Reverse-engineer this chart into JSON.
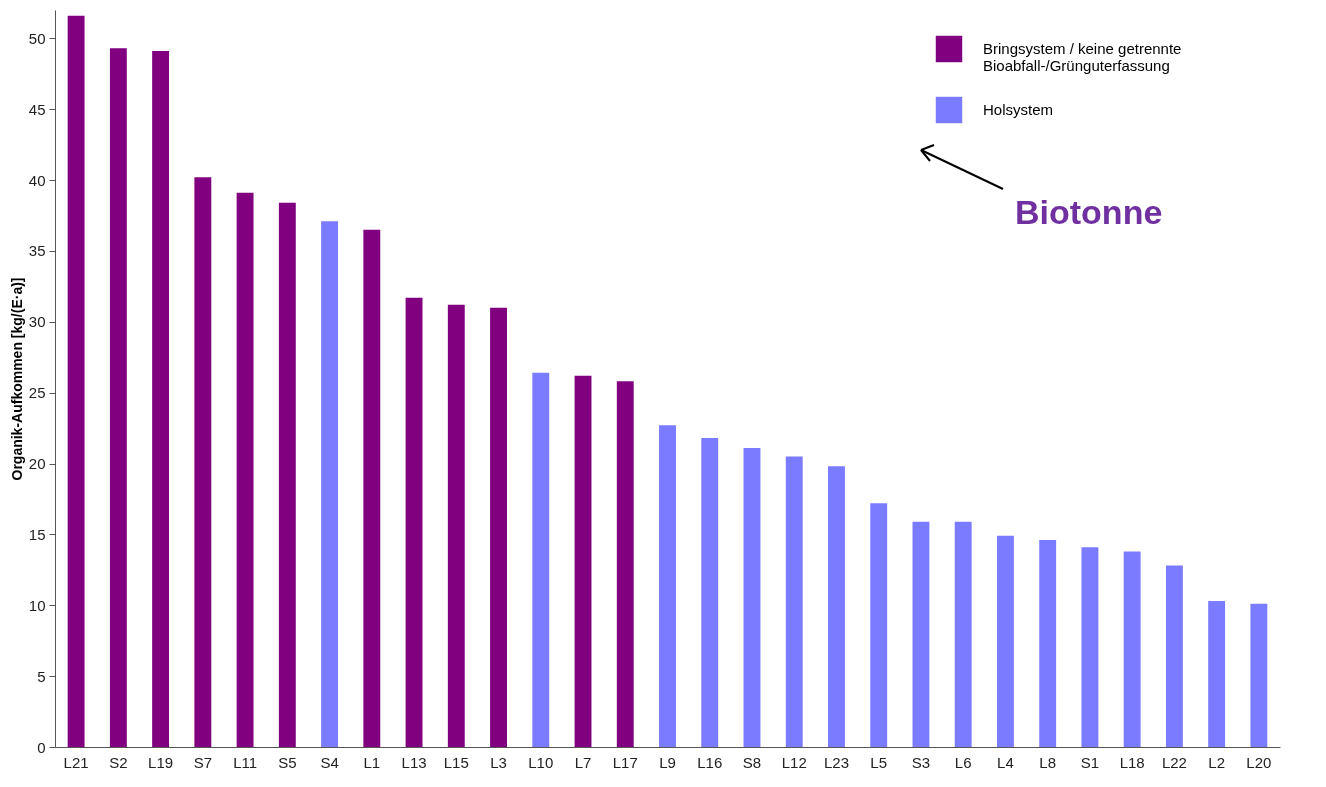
{
  "chart_data": {
    "type": "bar",
    "ylabel": "Organik-Aufkommen [kg/(E·a)]",
    "categories": [
      "L21",
      "S2",
      "L19",
      "S7",
      "L11",
      "S5",
      "S4",
      "L1",
      "L13",
      "L15",
      "L3",
      "L10",
      "L7",
      "L17",
      "L9",
      "L16",
      "S8",
      "L12",
      "L23",
      "L5",
      "S3",
      "L6",
      "L4",
      "L8",
      "S1",
      "L18",
      "L22",
      "L2",
      "L20"
    ],
    "series": [
      {
        "name": "Bringsystem / keine getrennte Bioabfall-/Grünguterfassung",
        "color": "#800080",
        "values": [
          51.6,
          49.3,
          49.1,
          40.2,
          39.1,
          38.4,
          null,
          36.5,
          31.7,
          31.2,
          31.0,
          null,
          26.2,
          25.8,
          null,
          null,
          null,
          null,
          null,
          null,
          null,
          null,
          null,
          null,
          null,
          null,
          null,
          null,
          null
        ]
      },
      {
        "name": "Holsystem",
        "color": "#7b7bff",
        "values": [
          null,
          null,
          null,
          null,
          null,
          null,
          37.1,
          null,
          null,
          null,
          null,
          26.4,
          null,
          null,
          22.7,
          21.8,
          21.1,
          20.5,
          19.8,
          17.2,
          15.9,
          15.9,
          14.9,
          14.6,
          14.1,
          13.8,
          12.8,
          10.3,
          10.1
        ]
      }
    ],
    "ylim": [
      0,
      52
    ],
    "yticks": [
      0,
      5,
      10,
      15,
      20,
      25,
      30,
      35,
      40,
      45,
      50
    ],
    "grid": false,
    "legend": "top right",
    "annotations": [
      "Biotonne"
    ]
  }
}
